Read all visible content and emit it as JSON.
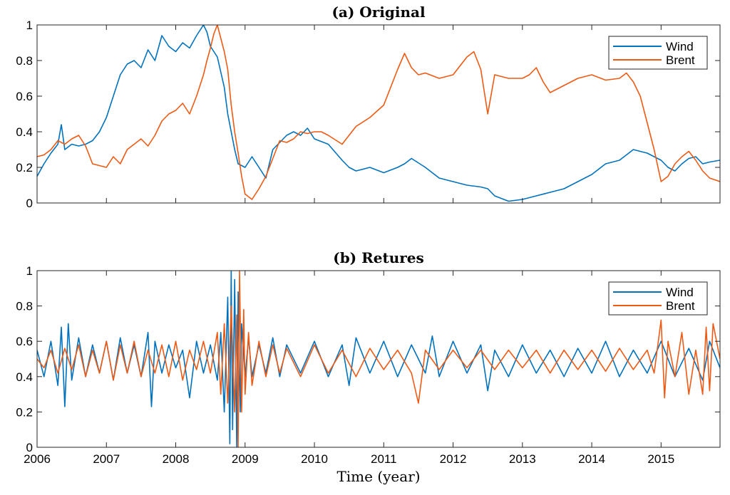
{
  "chart_data": [
    {
      "type": "line",
      "title": "(a) Original",
      "xlim": [
        2006,
        2015.85
      ],
      "ylim": [
        0,
        1
      ],
      "x_ticks": [
        2006,
        2007,
        2008,
        2009,
        2010,
        2011,
        2012,
        2013,
        2014,
        2015
      ],
      "y_ticks": [
        0,
        0.2,
        0.4,
        0.6,
        0.8,
        1
      ],
      "y_tick_labels": [
        "0",
        "0.2",
        "0.4",
        "0.6",
        "0.8",
        "1"
      ],
      "show_x_tick_labels": false,
      "legend_position": "top-right",
      "series": [
        {
          "name": "Wind",
          "color": "#0072BD",
          "x": [
            2006.0,
            2006.1,
            2006.2,
            2006.3,
            2006.35,
            2006.4,
            2006.5,
            2006.6,
            2006.7,
            2006.8,
            2006.9,
            2007.0,
            2007.1,
            2007.2,
            2007.3,
            2007.4,
            2007.5,
            2007.6,
            2007.7,
            2007.8,
            2007.9,
            2008.0,
            2008.1,
            2008.2,
            2008.3,
            2008.35,
            2008.4,
            2008.45,
            2008.5,
            2008.6,
            2008.7,
            2008.75,
            2008.8,
            2008.85,
            2008.9,
            2009.0,
            2009.1,
            2009.2,
            2009.3,
            2009.4,
            2009.5,
            2009.6,
            2009.7,
            2009.8,
            2009.9,
            2010.0,
            2010.2,
            2010.4,
            2010.5,
            2010.6,
            2010.8,
            2011.0,
            2011.2,
            2011.3,
            2011.4,
            2011.6,
            2011.8,
            2012.0,
            2012.2,
            2012.4,
            2012.5,
            2012.6,
            2012.8,
            2013.0,
            2013.2,
            2013.4,
            2013.6,
            2013.8,
            2014.0,
            2014.2,
            2014.4,
            2014.5,
            2014.6,
            2014.8,
            2015.0,
            2015.1,
            2015.2,
            2015.3,
            2015.4,
            2015.5,
            2015.6,
            2015.7,
            2015.85
          ],
          "values": [
            0.15,
            0.22,
            0.28,
            0.33,
            0.44,
            0.3,
            0.33,
            0.32,
            0.33,
            0.35,
            0.4,
            0.48,
            0.6,
            0.72,
            0.78,
            0.8,
            0.76,
            0.86,
            0.8,
            0.94,
            0.88,
            0.85,
            0.9,
            0.87,
            0.94,
            0.97,
            1.0,
            0.96,
            0.88,
            0.82,
            0.65,
            0.5,
            0.4,
            0.3,
            0.22,
            0.2,
            0.26,
            0.2,
            0.14,
            0.3,
            0.34,
            0.38,
            0.4,
            0.38,
            0.42,
            0.36,
            0.33,
            0.24,
            0.2,
            0.18,
            0.2,
            0.17,
            0.2,
            0.22,
            0.25,
            0.2,
            0.14,
            0.12,
            0.1,
            0.09,
            0.08,
            0.04,
            0.01,
            0.02,
            0.04,
            0.06,
            0.08,
            0.12,
            0.16,
            0.22,
            0.24,
            0.27,
            0.3,
            0.28,
            0.24,
            0.2,
            0.18,
            0.22,
            0.25,
            0.26,
            0.22,
            0.23,
            0.24
          ]
        },
        {
          "name": "Brent",
          "color": "#EE5A14",
          "x": [
            2006.0,
            2006.1,
            2006.2,
            2006.3,
            2006.4,
            2006.5,
            2006.6,
            2006.7,
            2006.8,
            2006.9,
            2007.0,
            2007.1,
            2007.2,
            2007.3,
            2007.4,
            2007.5,
            2007.6,
            2007.7,
            2007.8,
            2007.9,
            2008.0,
            2008.1,
            2008.2,
            2008.3,
            2008.4,
            2008.45,
            2008.5,
            2008.55,
            2008.6,
            2008.7,
            2008.75,
            2008.8,
            2008.85,
            2008.9,
            2008.95,
            2009.0,
            2009.1,
            2009.2,
            2009.3,
            2009.4,
            2009.5,
            2009.6,
            2009.7,
            2009.8,
            2009.9,
            2010.0,
            2010.1,
            2010.2,
            2010.4,
            2010.5,
            2010.6,
            2010.8,
            2011.0,
            2011.1,
            2011.2,
            2011.3,
            2011.4,
            2011.5,
            2011.6,
            2011.8,
            2012.0,
            2012.2,
            2012.3,
            2012.4,
            2012.5,
            2012.6,
            2012.8,
            2013.0,
            2013.1,
            2013.2,
            2013.3,
            2013.4,
            2013.5,
            2013.6,
            2013.8,
            2014.0,
            2014.2,
            2014.4,
            2014.5,
            2014.6,
            2014.7,
            2014.8,
            2014.9,
            2015.0,
            2015.1,
            2015.2,
            2015.3,
            2015.4,
            2015.5,
            2015.6,
            2015.7,
            2015.85
          ],
          "values": [
            0.26,
            0.27,
            0.3,
            0.35,
            0.33,
            0.36,
            0.38,
            0.32,
            0.22,
            0.21,
            0.2,
            0.26,
            0.22,
            0.3,
            0.33,
            0.36,
            0.32,
            0.38,
            0.46,
            0.5,
            0.52,
            0.56,
            0.5,
            0.6,
            0.72,
            0.8,
            0.87,
            0.95,
            1.0,
            0.85,
            0.75,
            0.55,
            0.4,
            0.28,
            0.15,
            0.05,
            0.02,
            0.08,
            0.15,
            0.25,
            0.35,
            0.34,
            0.36,
            0.4,
            0.39,
            0.4,
            0.4,
            0.38,
            0.33,
            0.38,
            0.43,
            0.48,
            0.55,
            0.65,
            0.75,
            0.84,
            0.76,
            0.72,
            0.73,
            0.7,
            0.72,
            0.82,
            0.85,
            0.75,
            0.5,
            0.72,
            0.7,
            0.7,
            0.72,
            0.76,
            0.68,
            0.62,
            0.64,
            0.66,
            0.7,
            0.72,
            0.69,
            0.7,
            0.73,
            0.68,
            0.6,
            0.45,
            0.3,
            0.12,
            0.15,
            0.22,
            0.26,
            0.29,
            0.24,
            0.18,
            0.14,
            0.12
          ]
        }
      ]
    },
    {
      "type": "line",
      "title": "(b) Retures",
      "xlabel": "Time (year)",
      "xlim": [
        2006,
        2015.85
      ],
      "ylim": [
        0,
        1
      ],
      "x_ticks": [
        2006,
        2007,
        2008,
        2009,
        2010,
        2011,
        2012,
        2013,
        2014,
        2015
      ],
      "x_tick_labels": [
        "2006",
        "2007",
        "2008",
        "2009",
        "2010",
        "2011",
        "2012",
        "2013",
        "2014",
        "2015"
      ],
      "y_ticks": [
        0,
        0.2,
        0.4,
        0.6,
        0.8,
        1
      ],
      "y_tick_labels": [
        "0",
        "0.2",
        "0.4",
        "0.6",
        "0.8",
        "1"
      ],
      "show_x_tick_labels": true,
      "legend_position": "top-right",
      "series": [
        {
          "name": "Wind",
          "color": "#0072BD",
          "x": [
            2006.0,
            2006.1,
            2006.2,
            2006.3,
            2006.35,
            2006.4,
            2006.45,
            2006.5,
            2006.6,
            2006.7,
            2006.8,
            2006.9,
            2007.0,
            2007.1,
            2007.2,
            2007.3,
            2007.4,
            2007.5,
            2007.6,
            2007.65,
            2007.7,
            2007.8,
            2007.9,
            2008.0,
            2008.1,
            2008.2,
            2008.3,
            2008.4,
            2008.5,
            2008.6,
            2008.65,
            2008.7,
            2008.75,
            2008.78,
            2008.8,
            2008.82,
            2008.85,
            2008.88,
            2008.9,
            2008.93,
            2008.95,
            2009.0,
            2009.05,
            2009.1,
            2009.2,
            2009.3,
            2009.4,
            2009.5,
            2009.6,
            2009.8,
            2010.0,
            2010.2,
            2010.4,
            2010.5,
            2010.6,
            2010.8,
            2011.0,
            2011.2,
            2011.4,
            2011.6,
            2011.7,
            2011.8,
            2012.0,
            2012.2,
            2012.4,
            2012.5,
            2012.6,
            2012.8,
            2013.0,
            2013.2,
            2013.4,
            2013.6,
            2013.8,
            2014.0,
            2014.2,
            2014.4,
            2014.6,
            2014.8,
            2015.0,
            2015.2,
            2015.4,
            2015.6,
            2015.7,
            2015.85
          ],
          "values": [
            0.55,
            0.4,
            0.6,
            0.35,
            0.68,
            0.23,
            0.7,
            0.38,
            0.62,
            0.4,
            0.58,
            0.42,
            0.6,
            0.38,
            0.62,
            0.42,
            0.58,
            0.4,
            0.65,
            0.23,
            0.6,
            0.42,
            0.58,
            0.45,
            0.55,
            0.28,
            0.6,
            0.42,
            0.58,
            0.38,
            0.65,
            0.2,
            0.85,
            0.02,
            1.0,
            0.1,
            0.95,
            0.0,
            0.88,
            0.2,
            0.7,
            0.4,
            0.62,
            0.4,
            0.58,
            0.42,
            0.62,
            0.4,
            0.58,
            0.42,
            0.6,
            0.4,
            0.58,
            0.35,
            0.62,
            0.42,
            0.6,
            0.4,
            0.58,
            0.42,
            0.63,
            0.4,
            0.6,
            0.42,
            0.58,
            0.32,
            0.55,
            0.4,
            0.58,
            0.42,
            0.55,
            0.4,
            0.56,
            0.42,
            0.6,
            0.4,
            0.55,
            0.42,
            0.6,
            0.4,
            0.56,
            0.38,
            0.6,
            0.45
          ]
        },
        {
          "name": "Brent",
          "color": "#EE5A14",
          "x": [
            2006.0,
            2006.1,
            2006.2,
            2006.3,
            2006.4,
            2006.5,
            2006.6,
            2006.7,
            2006.8,
            2006.9,
            2007.0,
            2007.1,
            2007.2,
            2007.3,
            2007.4,
            2007.5,
            2007.6,
            2007.7,
            2007.8,
            2007.9,
            2008.0,
            2008.1,
            2008.2,
            2008.3,
            2008.4,
            2008.5,
            2008.6,
            2008.65,
            2008.7,
            2008.75,
            2008.8,
            2008.85,
            2008.88,
            2008.9,
            2008.92,
            2008.95,
            2008.98,
            2009.0,
            2009.05,
            2009.1,
            2009.2,
            2009.3,
            2009.4,
            2009.5,
            2009.6,
            2009.8,
            2010.0,
            2010.2,
            2010.4,
            2010.6,
            2010.8,
            2011.0,
            2011.2,
            2011.4,
            2011.5,
            2011.6,
            2011.8,
            2012.0,
            2012.2,
            2012.4,
            2012.6,
            2012.8,
            2013.0,
            2013.2,
            2013.4,
            2013.6,
            2013.8,
            2014.0,
            2014.2,
            2014.4,
            2014.6,
            2014.8,
            2014.9,
            2015.0,
            2015.05,
            2015.1,
            2015.2,
            2015.3,
            2015.4,
            2015.5,
            2015.6,
            2015.65,
            2015.7,
            2015.75,
            2015.85
          ],
          "values": [
            0.5,
            0.45,
            0.55,
            0.42,
            0.56,
            0.44,
            0.58,
            0.4,
            0.55,
            0.42,
            0.6,
            0.38,
            0.58,
            0.42,
            0.6,
            0.4,
            0.55,
            0.42,
            0.58,
            0.4,
            0.6,
            0.38,
            0.55,
            0.44,
            0.6,
            0.42,
            0.65,
            0.3,
            0.7,
            0.25,
            0.8,
            0.2,
            0.75,
            0.0,
            1.0,
            0.2,
            0.78,
            0.3,
            0.65,
            0.35,
            0.6,
            0.4,
            0.58,
            0.42,
            0.56,
            0.4,
            0.58,
            0.42,
            0.55,
            0.4,
            0.56,
            0.44,
            0.55,
            0.42,
            0.25,
            0.55,
            0.44,
            0.55,
            0.45,
            0.55,
            0.44,
            0.55,
            0.45,
            0.55,
            0.42,
            0.55,
            0.44,
            0.55,
            0.43,
            0.56,
            0.44,
            0.55,
            0.42,
            0.72,
            0.28,
            0.6,
            0.4,
            0.65,
            0.3,
            0.55,
            0.3,
            0.68,
            0.32,
            0.7,
            0.5
          ]
        }
      ]
    }
  ]
}
